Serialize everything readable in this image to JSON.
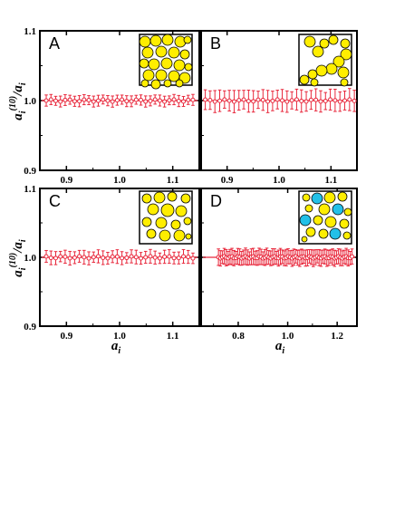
{
  "figure": {
    "ylabel_main": "a",
    "ylabel_sub": "i",
    "ylabel_sup": "(10)",
    "ylabel_den_main": "a",
    "ylabel_den_sub": "i",
    "xlabel_main": "a",
    "xlabel_sub": "i"
  },
  "colors": {
    "data": "#e8283c",
    "particle_yellow": "#ffee00",
    "particle_cyan": "#22c0e8",
    "frame": "#000000"
  },
  "chart_data": [
    {
      "type": "scatter",
      "panel": "A",
      "xlim": [
        0.85,
        1.15
      ],
      "ylim": [
        0.9,
        1.1
      ],
      "xticks": [
        0.9,
        1.0,
        1.1
      ],
      "xtick_labels": [
        "0.9",
        "1.0",
        "1.1"
      ],
      "yticks": [
        0.9,
        1.0,
        1.1
      ],
      "ytick_labels": [
        "0.9",
        "1.0",
        "1.1"
      ],
      "x_range": [
        0.862,
        1.138
      ],
      "n_points": 32,
      "y_value": 1.0,
      "error": 0.008,
      "inset": "monodisperse-dense"
    },
    {
      "type": "scatter",
      "panel": "B",
      "xlim": [
        0.85,
        1.15
      ],
      "ylim": [
        0.9,
        1.1
      ],
      "xticks": [
        0.9,
        1.0,
        1.1
      ],
      "xtick_labels": [
        "0.9",
        "1.0",
        "1.1"
      ],
      "yticks": [
        0.9,
        1.0,
        1.1
      ],
      "ytick_labels": [
        "",
        "",
        ""
      ],
      "x_range": [
        0.858,
        1.145
      ],
      "n_points": 32,
      "y_value": 1.0,
      "error": 0.016,
      "inset": "monodisperse-cluster"
    },
    {
      "type": "scatter",
      "panel": "C",
      "xlim": [
        0.85,
        1.15
      ],
      "ylim": [
        0.9,
        1.1
      ],
      "xticks": [
        0.9,
        1.0,
        1.1
      ],
      "xtick_labels": [
        "0.9",
        "1.0",
        "1.1"
      ],
      "yticks": [
        0.9,
        1.0,
        1.1
      ],
      "ytick_labels": [
        "0.9",
        "1.0",
        "1.1"
      ],
      "x_range": [
        0.862,
        1.138
      ],
      "n_points": 32,
      "y_value": 1.0,
      "error": 0.01,
      "inset": "polydisperse-sparse"
    },
    {
      "type": "scatter",
      "panel": "D",
      "xlim": [
        0.65,
        1.28
      ],
      "ylim": [
        0.9,
        1.1
      ],
      "xticks": [
        0.8,
        1.0,
        1.2
      ],
      "xtick_labels": [
        "0.8",
        "1.0",
        "1.2"
      ],
      "yticks": [
        0.9,
        1.0,
        1.1
      ],
      "ytick_labels": [
        "",
        "",
        ""
      ],
      "x_range": [
        0.72,
        1.26
      ],
      "n_points": 70,
      "y_value": 1.0,
      "error": 0.012,
      "inset": "bidisperse-mixed"
    }
  ]
}
